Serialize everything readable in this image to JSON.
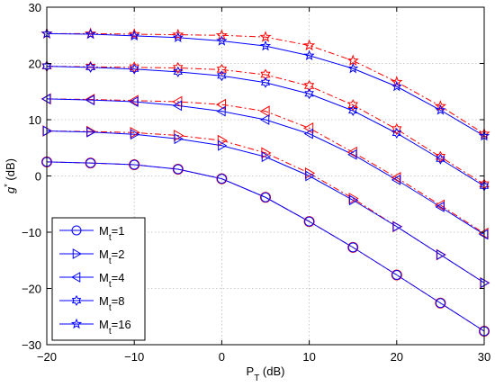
{
  "chart_data": {
    "type": "line",
    "xlabel_main": "P",
    "xlabel_sub": "T",
    "xlabel_unit": " (dB)",
    "ylabel_main": "g",
    "ylabel_sup": "*",
    "ylabel_unit": " (dB)",
    "xlim": [
      -20,
      30
    ],
    "ylim": [
      -30,
      30
    ],
    "xticks": [
      -20,
      -10,
      0,
      10,
      20,
      30
    ],
    "yticks": [
      -30,
      -20,
      -10,
      0,
      10,
      20,
      30
    ],
    "xtick_labels": [
      "−20",
      "−10",
      "0",
      "10",
      "20",
      "30"
    ],
    "ytick_labels": [
      "−30",
      "−20",
      "−10",
      "0",
      "10",
      "20",
      "30"
    ],
    "grid": true,
    "legend_position": "bottom-left",
    "x": [
      -20,
      -15,
      -10,
      -5,
      0,
      5,
      10,
      15,
      20,
      25,
      30
    ],
    "series": [
      {
        "name_main": "M",
        "name_sub": "t",
        "name_val": "=1",
        "marker": "circle",
        "solid": [
          2.5,
          2.3,
          2.0,
          1.2,
          -0.5,
          -3.8,
          -8.1,
          -12.7,
          -17.6,
          -22.6,
          -27.6
        ],
        "dashed": [
          2.5,
          2.3,
          2.0,
          1.2,
          -0.5,
          -3.8,
          -8.1,
          -12.7,
          -17.6,
          -22.6,
          -27.6
        ]
      },
      {
        "name_main": "M",
        "name_sub": "t",
        "name_val": "=2",
        "marker": "triangle-right",
        "solid": [
          8.0,
          7.8,
          7.4,
          6.6,
          5.4,
          3.4,
          0.0,
          -4.3,
          -9.0,
          -14.0,
          -19.0
        ],
        "dashed": [
          8.0,
          7.9,
          7.7,
          7.2,
          6.3,
          4.1,
          0.5,
          -4.0,
          -9.0,
          -14.0,
          -19.0
        ]
      },
      {
        "name_main": "M",
        "name_sub": "t",
        "name_val": "=4",
        "marker": "triangle-left",
        "solid": [
          13.7,
          13.5,
          13.2,
          12.5,
          11.5,
          10.0,
          7.5,
          3.8,
          -0.7,
          -5.5,
          -10.4
        ],
        "dashed": [
          13.7,
          13.6,
          13.4,
          13.2,
          12.7,
          11.5,
          8.5,
          4.2,
          -0.3,
          -5.2,
          -10.2
        ]
      },
      {
        "name_main": "M",
        "name_sub": "t",
        "name_val": "=8",
        "marker": "star6",
        "solid": [
          19.5,
          19.3,
          19.0,
          18.5,
          17.8,
          16.6,
          14.6,
          11.6,
          7.6,
          3.0,
          -1.8
        ],
        "dashed": [
          19.5,
          19.4,
          19.3,
          19.2,
          18.9,
          18.0,
          16.0,
          12.6,
          8.3,
          3.4,
          -1.5
        ]
      },
      {
        "name_main": "M",
        "name_sub": "t",
        "name_val": "=16",
        "marker": "star5",
        "solid": [
          25.3,
          25.2,
          24.9,
          24.6,
          24.0,
          23.1,
          21.4,
          19.1,
          15.9,
          11.7,
          7.1
        ],
        "dashed": [
          25.3,
          25.3,
          25.2,
          25.1,
          25.0,
          24.7,
          23.2,
          20.5,
          16.7,
          12.4,
          7.5
        ]
      }
    ],
    "colors": {
      "solid": "#0000ff",
      "dashed": "#ff0000",
      "grid": "#bcbcbc",
      "axis": "#000000"
    }
  }
}
